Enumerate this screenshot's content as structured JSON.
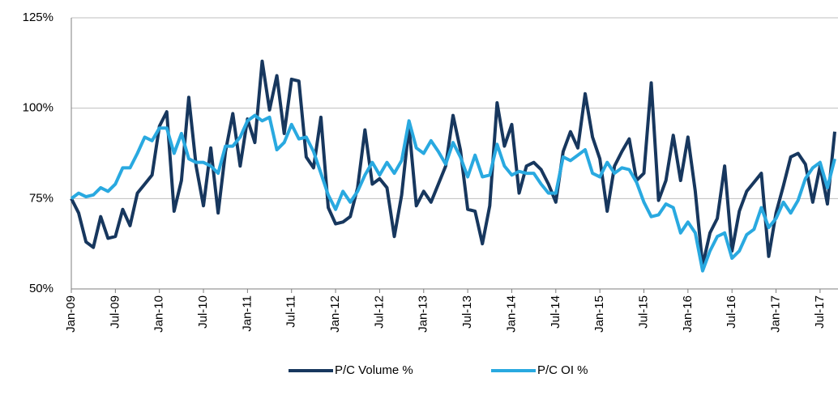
{
  "chart_data": {
    "type": "line",
    "categories": [
      "Jan-09",
      null,
      null,
      null,
      null,
      null,
      "Jul-09",
      null,
      null,
      null,
      null,
      null,
      "Jan-10",
      null,
      null,
      null,
      null,
      null,
      "Jul-10",
      null,
      null,
      null,
      null,
      null,
      "Jan-11",
      null,
      null,
      null,
      null,
      null,
      "Jul-11",
      null,
      null,
      null,
      null,
      null,
      "Jan-12",
      null,
      null,
      null,
      null,
      null,
      "Jul-12",
      null,
      null,
      null,
      null,
      null,
      "Jan-13",
      null,
      null,
      null,
      null,
      null,
      "Jul-13",
      null,
      null,
      null,
      null,
      null,
      "Jan-14",
      null,
      null,
      null,
      null,
      null,
      "Jul-14",
      null,
      null,
      null,
      null,
      null,
      "Jan-15",
      null,
      null,
      null,
      null,
      null,
      "Jul-15",
      null,
      null,
      null,
      null,
      null,
      "Jan-16",
      null,
      null,
      null,
      null,
      null,
      "Jul-16",
      null,
      null,
      null,
      null,
      null,
      "Jan-17",
      null,
      null,
      null,
      null,
      null,
      "Jul-17",
      null,
      null
    ],
    "series": [
      {
        "name": "P/C Volume %",
        "color": "#17375e",
        "values": [
          75,
          71,
          63,
          61.5,
          70,
          64,
          64.5,
          72,
          67.5,
          76.5,
          79,
          81.5,
          95,
          99,
          71.5,
          80,
          103,
          84,
          73,
          89,
          71,
          88,
          98.5,
          84,
          97,
          90.5,
          113,
          99.5,
          109,
          93,
          108,
          107.5,
          86.5,
          83.5,
          97.5,
          72.5,
          68,
          68.5,
          70,
          78,
          94,
          79,
          80.5,
          78,
          64.5,
          76,
          95,
          73,
          77,
          74,
          79,
          84,
          98,
          88.5,
          72,
          71.5,
          62.5,
          73,
          101.5,
          89.5,
          95.5,
          76.5,
          84,
          85,
          83,
          79,
          74,
          88,
          93.5,
          89,
          104,
          92,
          86,
          71.5,
          84,
          88,
          91.5,
          80,
          82,
          107,
          74.5,
          80,
          92.5,
          80,
          92,
          77,
          56.5,
          65.5,
          69.5,
          84,
          60.5,
          71.5,
          77,
          79.5,
          82,
          59,
          71,
          78.5,
          86.5,
          87.5,
          84.5,
          74,
          84,
          73.5,
          93.5
        ]
      },
      {
        "name": "P/C OI %",
        "color": "#29a9e0",
        "values": [
          75,
          76.5,
          75.5,
          76,
          78,
          77,
          79,
          83.5,
          83.5,
          87.5,
          92,
          91,
          94.5,
          94.5,
          87.5,
          93,
          86,
          85,
          85,
          84,
          82,
          89.5,
          89.5,
          92,
          96.5,
          98,
          96.5,
          97.5,
          88.5,
          90.5,
          95.5,
          91.5,
          92,
          88,
          82,
          76,
          72,
          77,
          74,
          77,
          81.5,
          85,
          81.5,
          85,
          82,
          85.5,
          96.5,
          89,
          87.5,
          91,
          88,
          84.5,
          90.5,
          86.5,
          81,
          87,
          81,
          81.5,
          90,
          84,
          81.5,
          82.5,
          82,
          82,
          79,
          76.5,
          76.5,
          86.5,
          85.5,
          87,
          88.5,
          82,
          81,
          85,
          82,
          83.5,
          83,
          79.5,
          74,
          70,
          70.5,
          73.5,
          72.5,
          65.5,
          68.5,
          65.5,
          55,
          60.5,
          64.5,
          65.5,
          58.5,
          60.5,
          65,
          66.5,
          72.5,
          67,
          69.5,
          74,
          71,
          74.5,
          80.5,
          83.5,
          85,
          78,
          86
        ]
      }
    ],
    "ylim": [
      50,
      125
    ],
    "yticks": [
      {
        "value": 50,
        "label": "50%"
      },
      {
        "value": 75,
        "label": "75%"
      },
      {
        "value": 100,
        "label": "100%"
      },
      {
        "value": 125,
        "label": "125%"
      }
    ],
    "grid": true,
    "legend": "bottom"
  }
}
